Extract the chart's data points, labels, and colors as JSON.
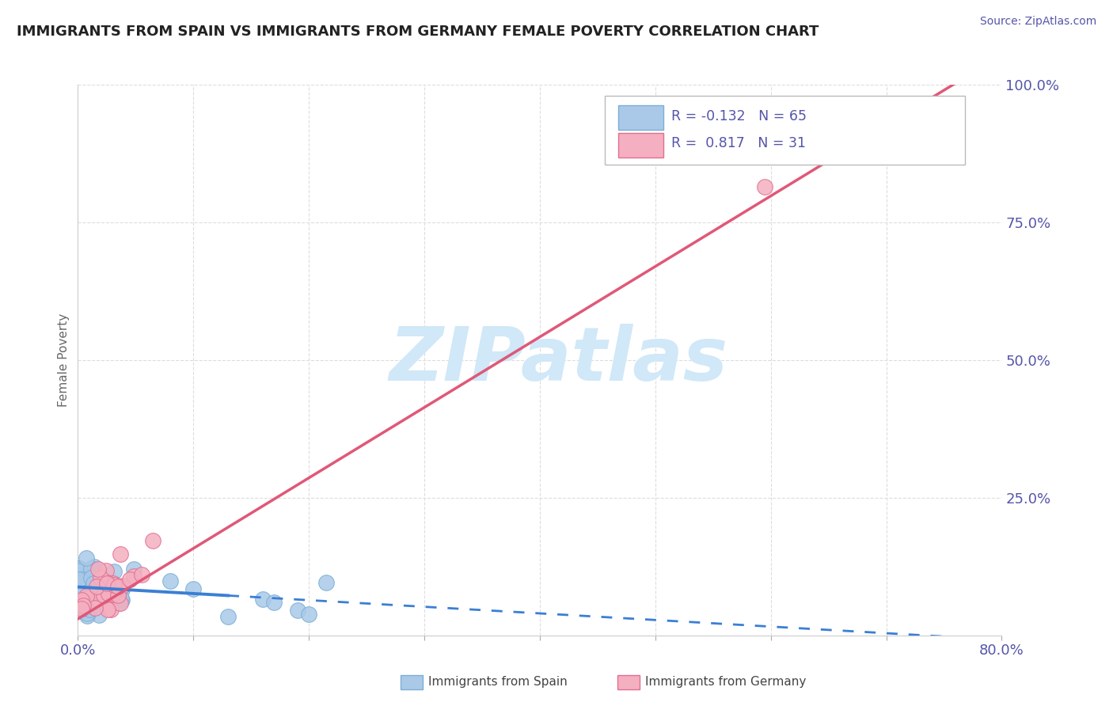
{
  "title": "IMMIGRANTS FROM SPAIN VS IMMIGRANTS FROM GERMANY FEMALE POVERTY CORRELATION CHART",
  "source": "Source: ZipAtlas.com",
  "ylabel": "Female Poverty",
  "xlim": [
    0.0,
    0.8
  ],
  "ylim": [
    0.0,
    1.0
  ],
  "spain_color": "#aac9e8",
  "spain_edge_color": "#7aafd4",
  "germany_color": "#f4afc0",
  "germany_edge_color": "#e07090",
  "spain_R": -0.132,
  "spain_N": 65,
  "germany_R": 0.817,
  "germany_N": 31,
  "trend_spain_color": "#3a7fd4",
  "trend_germany_color": "#e05878",
  "watermark_color": "#d0e8f8",
  "background_color": "#ffffff",
  "grid_color": "#dddddd",
  "tick_color": "#5555aa",
  "title_color": "#222222",
  "ylabel_color": "#666666"
}
